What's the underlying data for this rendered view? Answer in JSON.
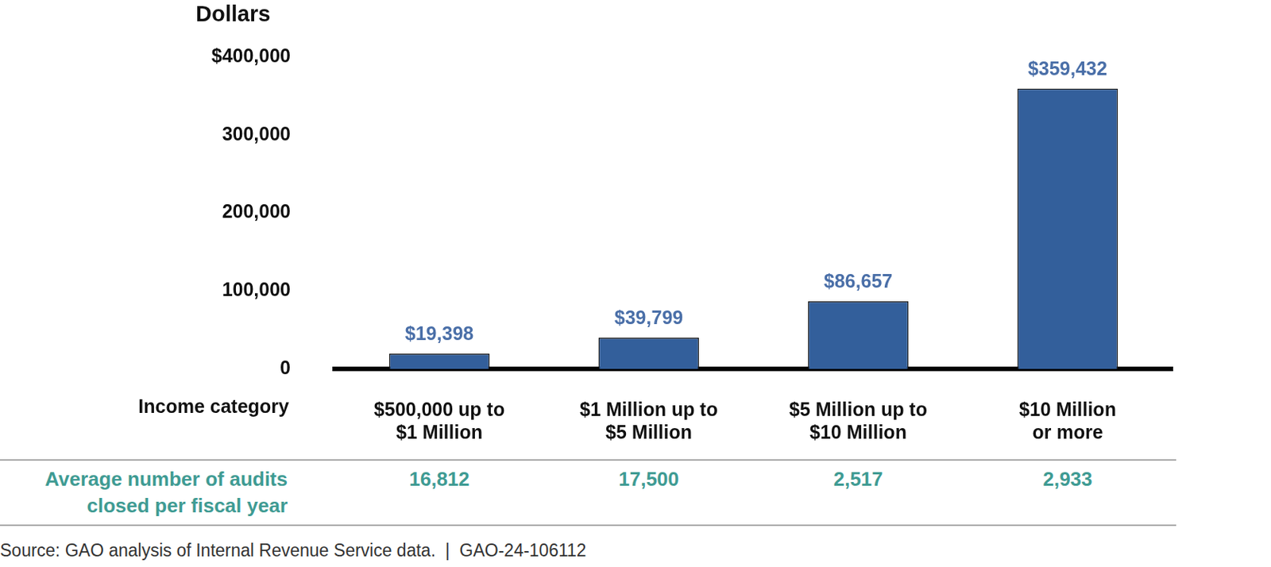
{
  "chart_data": {
    "type": "bar",
    "y_label": "Dollars",
    "x_label": "Income category",
    "categories": [
      [
        "$500,000 up to",
        "$1 Million"
      ],
      [
        "$1 Million up to",
        "$5 Million"
      ],
      [
        "$5 Million up to",
        "$10 Million"
      ],
      [
        "$10 Million",
        "or more"
      ]
    ],
    "values": [
      19398,
      39799,
      86657,
      359432
    ],
    "value_labels": [
      "$19,398",
      "$39,799",
      "$86,657",
      "$359,432"
    ],
    "color": "#335f9b",
    "ylim": [
      0,
      400000
    ],
    "yticks": [
      0,
      {
        "value": 100000,
        "label": "100,000"
      },
      {
        "value": 200000,
        "label": "200,000"
      },
      {
        "value": 300000,
        "label": "300,000"
      },
      {
        "value": 400000,
        "label": "$400,000"
      }
    ],
    "grid": false,
    "data_labels": true
  },
  "audits_row": {
    "label": [
      "Average number of audits",
      "closed per fiscal year"
    ],
    "values": [
      16812,
      17500,
      2517,
      2933
    ]
  },
  "source": "Source: GAO analysis of Internal Revenue Service data.  |  GAO-24-106112"
}
